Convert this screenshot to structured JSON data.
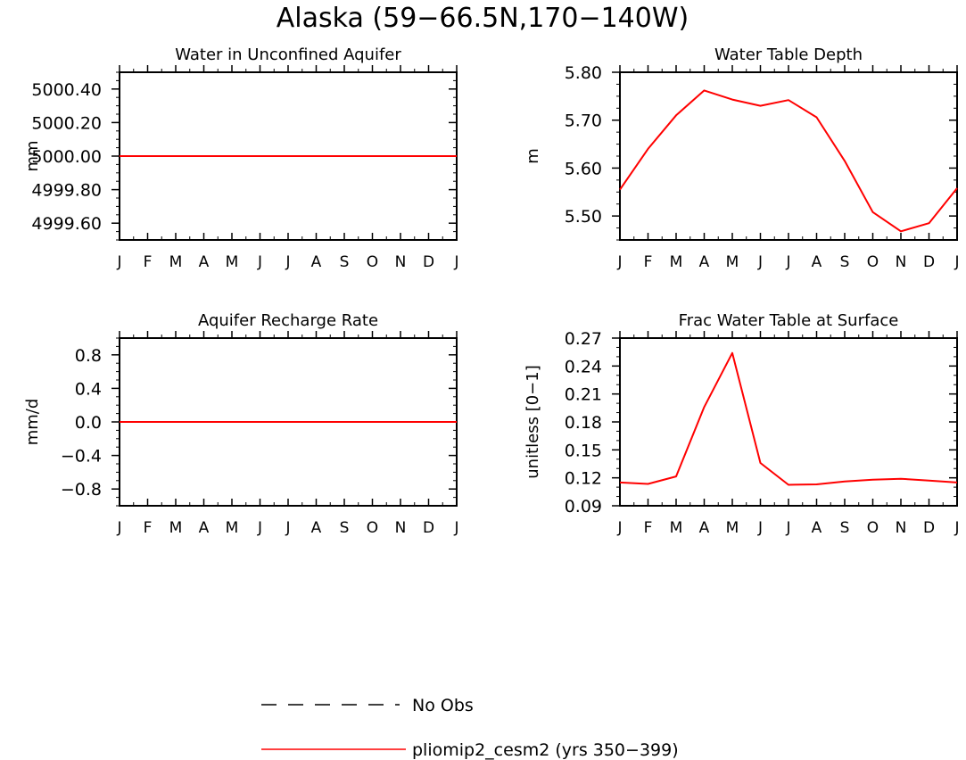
{
  "title": "Alaska (59−66.5N,170−140W)",
  "months": [
    "J",
    "F",
    "M",
    "A",
    "M",
    "J",
    "J",
    "A",
    "S",
    "O",
    "N",
    "D",
    "J"
  ],
  "colors": {
    "model": "#ff0000",
    "obs": "#000000",
    "axis": "#000000"
  },
  "legend": {
    "obs_label": "No Obs",
    "model_label": "pliomip2_cesm2 (yrs 350−399)"
  },
  "chart_data": [
    {
      "type": "line",
      "title": "Water in Unconfined Aquifer",
      "ylabel": "mm",
      "ylim": [
        4999.5,
        5000.5
      ],
      "yticks": [
        4999.6,
        4999.8,
        5000.0,
        5000.2,
        5000.4
      ],
      "ytick_labels": [
        "4999.60",
        "4999.80",
        "5000.00",
        "5000.20",
        "5000.40"
      ],
      "minor_step": 0.05,
      "series": [
        {
          "values": [
            5000,
            5000,
            5000,
            5000,
            5000,
            5000,
            5000,
            5000,
            5000,
            5000,
            5000,
            5000,
            5000
          ]
        }
      ]
    },
    {
      "type": "line",
      "title": "Water Table Depth",
      "ylabel": "m",
      "ylim": [
        5.45,
        5.8
      ],
      "yticks": [
        5.5,
        5.6,
        5.7,
        5.8
      ],
      "ytick_labels": [
        "5.50",
        "5.60",
        "5.70",
        "5.80"
      ],
      "minor_step": 0.025,
      "series": [
        {
          "values": [
            5.555,
            5.64,
            5.71,
            5.762,
            5.743,
            5.73,
            5.742,
            5.706,
            5.615,
            5.508,
            5.468,
            5.485,
            5.558
          ]
        }
      ]
    },
    {
      "type": "line",
      "title": "Aquifer Recharge Rate",
      "ylabel": "mm/d",
      "ylim": [
        -1.0,
        1.0
      ],
      "yticks": [
        -0.8,
        -0.4,
        0.0,
        0.4,
        0.8
      ],
      "ytick_labels": [
        "−0.8",
        "−0.4",
        "0.0",
        "0.4",
        "0.8"
      ],
      "minor_step": 0.1,
      "series": [
        {
          "values": [
            0,
            0,
            0,
            0,
            0,
            0,
            0,
            0,
            0,
            0,
            0,
            0,
            0
          ]
        }
      ]
    },
    {
      "type": "line",
      "title": "Frac Water Table at Surface",
      "ylabel": "unitless [0−1]",
      "ylim": [
        0.09,
        0.27
      ],
      "yticks": [
        0.09,
        0.12,
        0.15,
        0.18,
        0.21,
        0.24,
        0.27
      ],
      "ytick_labels": [
        "0.09",
        "0.12",
        "0.15",
        "0.18",
        "0.21",
        "0.24",
        "0.27"
      ],
      "minor_step": 0.01,
      "series": [
        {
          "values": [
            0.115,
            0.1135,
            0.1215,
            0.196,
            0.254,
            0.136,
            0.1125,
            0.113,
            0.116,
            0.118,
            0.119,
            0.117,
            0.115
          ]
        }
      ]
    }
  ]
}
